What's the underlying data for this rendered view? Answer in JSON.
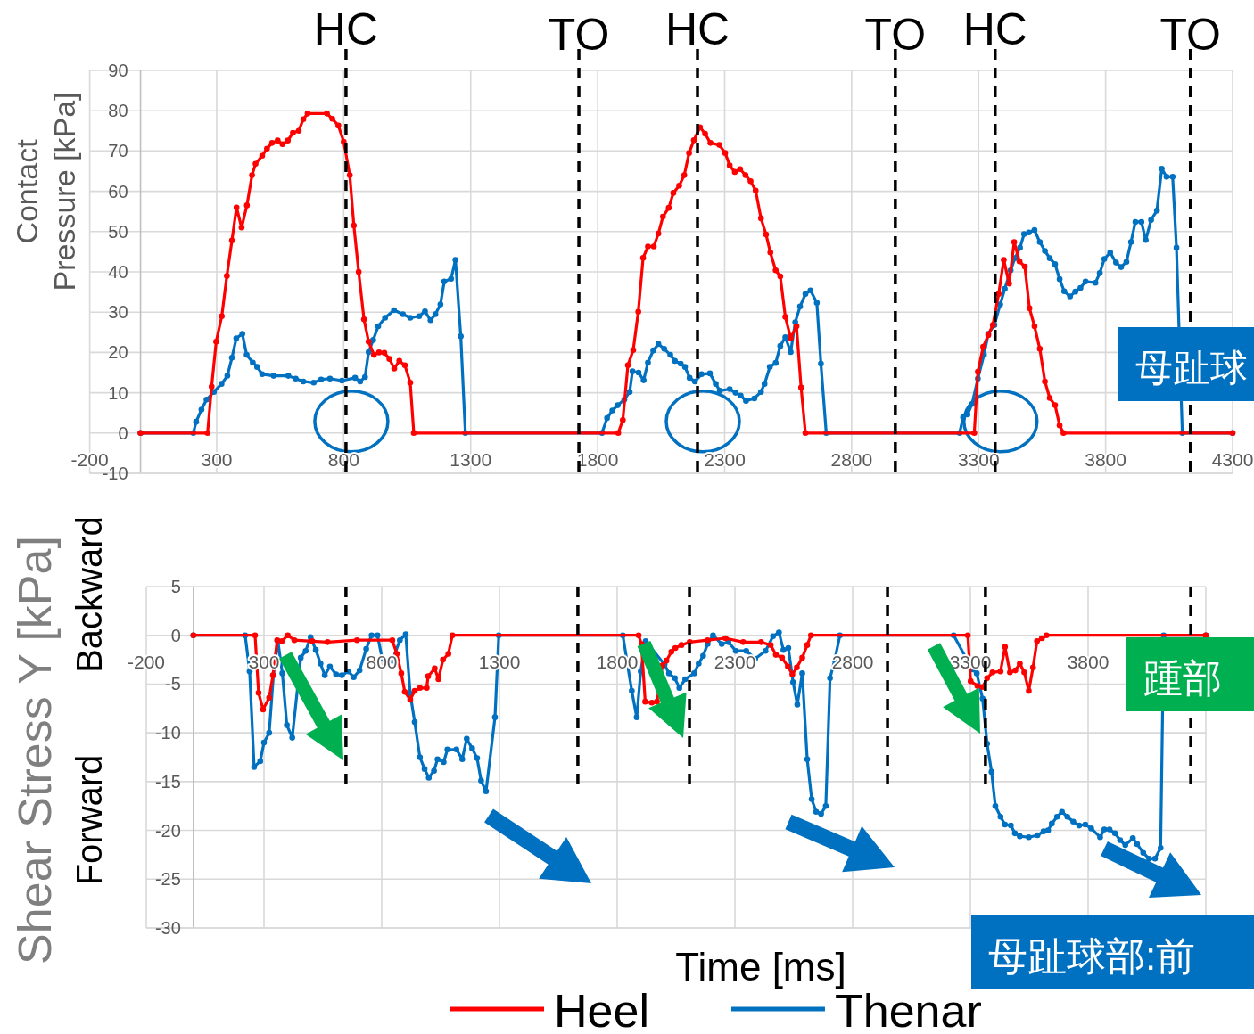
{
  "chart_data": [
    {
      "type": "line",
      "ylabel": "Contact\nPressure [kPa]",
      "xlim": [
        -200,
        4300
      ],
      "ylim": [
        -10,
        90
      ],
      "xticks": [
        -200,
        300,
        800,
        1300,
        1800,
        2300,
        2800,
        3300,
        3800,
        4300
      ],
      "yticks": [
        -10,
        0,
        10,
        20,
        30,
        40,
        50,
        60,
        70,
        80,
        90
      ],
      "grid": true,
      "marker": "circle",
      "line_style": "solid",
      "series": [
        {
          "color": "#ff0000",
          "x": [
            0,
            264,
            280,
            298,
            320,
            340,
            360,
            378,
            398,
            419,
            439,
            453,
            479,
            498,
            518,
            540,
            559,
            580,
            600,
            623,
            641,
            658,
            734,
            755,
            779,
            800,
            824,
            840,
            859,
            880,
            898,
            919,
            939,
            960,
            980,
            999,
            1019,
            1041,
            1062,
            1076,
            1881,
            1899,
            1919,
            1940,
            1960,
            1979,
            1998,
            2021,
            2039,
            2057,
            2080,
            2098,
            2121,
            2141,
            2160,
            2179,
            2203,
            2223,
            2244,
            2279,
            2302,
            2320,
            2340,
            2361,
            2382,
            2402,
            2422,
            2443,
            2463,
            2480,
            2501,
            2519,
            2539,
            2560,
            2583,
            2601,
            2618,
            3283,
            3297,
            3318,
            3338,
            3356,
            3379,
            3399,
            3420,
            3440,
            3461,
            3482,
            3500,
            3520,
            3541,
            3561,
            3580,
            3601,
            3619,
            3634,
            4300
          ],
          "values": [
            0,
            0,
            11.5,
            22.7,
            29,
            39,
            47.8,
            56,
            51,
            56.5,
            64,
            66.8,
            68.8,
            70.6,
            72,
            72.6,
            71.7,
            72.6,
            74.5,
            75,
            77.9,
            79.3,
            79.3,
            78,
            76.3,
            72.3,
            64,
            51.5,
            40,
            28.2,
            22.7,
            19.4,
            20,
            19.9,
            18.4,
            16,
            17.9,
            16.8,
            12.5,
            0,
            0,
            3.2,
            16.8,
            20.6,
            30.1,
            43.5,
            46.3,
            46.3,
            49.5,
            53.7,
            55.9,
            59.6,
            61.4,
            64,
            69.5,
            72.7,
            75.9,
            74.3,
            72,
            71.5,
            69.5,
            66.4,
            64.8,
            65.5,
            64,
            62.5,
            60.2,
            53.3,
            49.3,
            44.8,
            40.4,
            38.9,
            28.8,
            23.6,
            26.5,
            11.3,
            0,
            0,
            15.2,
            21.4,
            24.3,
            26.8,
            34.5,
            43,
            37.1,
            47.4,
            42.6,
            41.3,
            31,
            26.5,
            20.9,
            12.8,
            8.7,
            6.9,
            1.9,
            0,
            0
          ]
        },
        {
          "color": "#0070c0",
          "x": [
            0,
            208,
            219,
            240,
            260,
            289,
            319,
            342,
            360,
            377,
            401,
            418,
            442,
            459,
            479,
            524,
            582,
            611,
            641,
            682,
            711,
            746,
            793,
            845,
            865,
            884,
            898,
            916,
            936,
            963,
            998,
            1033,
            1062,
            1097,
            1120,
            1142,
            1161,
            1181,
            1196,
            1223,
            1240,
            1261,
            1279,
            1817,
            1837,
            1858,
            1879,
            1905,
            1926,
            1937,
            1961,
            1981,
            1998,
            2019,
            2039,
            2062,
            2086,
            2104,
            2127,
            2144,
            2162,
            2183,
            2209,
            2242,
            2265,
            2281,
            2320,
            2343,
            2363,
            2384,
            2417,
            2443,
            2457,
            2478,
            2501,
            2519,
            2539,
            2560,
            2578,
            2597,
            2618,
            2638,
            2663,
            2679,
            2700,
            3225,
            3239,
            3256,
            3274,
            3297,
            3321,
            3338,
            3362,
            3385,
            3403,
            3426,
            3443,
            3463,
            3479,
            3498,
            3520,
            3541,
            3561,
            3580,
            3601,
            3619,
            3637,
            3660,
            3681,
            3701,
            3721,
            3760,
            3777,
            3795,
            3818,
            3841,
            3861,
            3882,
            3900,
            3917,
            3941,
            3958,
            3979,
            4002,
            4021,
            4040,
            4064,
            4079,
            4102,
            4300
          ],
          "values": [
            0,
            0,
            2.8,
            5.8,
            8.3,
            10.2,
            12.2,
            14.2,
            18.7,
            23.5,
            24.6,
            19.4,
            17.5,
            16.4,
            14.6,
            14.2,
            14.2,
            13.5,
            12.8,
            12.5,
            13.3,
            13.5,
            13,
            13.7,
            12.8,
            13.9,
            20.1,
            23.1,
            26.5,
            28.6,
            30.5,
            29.5,
            28.6,
            29,
            30.2,
            28,
            29.5,
            31.9,
            37.6,
            38.3,
            43,
            24,
            0,
            0,
            3.7,
            5.6,
            6.9,
            8.3,
            10.2,
            15.3,
            15,
            13.1,
            17.5,
            20.5,
            22.1,
            20.9,
            19.4,
            17.9,
            17.2,
            16.4,
            13.7,
            12.8,
            14.6,
            14.8,
            12.2,
            10.5,
            10.9,
            10,
            9.3,
            8,
            8.6,
            10.2,
            12.2,
            16.4,
            17.4,
            21.6,
            23.8,
            20.1,
            27.5,
            31.4,
            34.5,
            35.4,
            32.3,
            17.2,
            0,
            0,
            3.9,
            4.6,
            7.2,
            13.5,
            19.4,
            24.6,
            26.8,
            31.9,
            35.8,
            40.4,
            43.4,
            46,
            49.4,
            49.8,
            50.4,
            47.4,
            45.2,
            43.4,
            41.9,
            38.2,
            35.2,
            33.9,
            35.1,
            36,
            37.6,
            37.3,
            39.7,
            43.2,
            44.8,
            42.3,
            41.2,
            42.5,
            47.4,
            52.4,
            52.4,
            47.9,
            52.9,
            55.2,
            65.6,
            63.6,
            63.6,
            46,
            0,
            0
          ]
        }
      ],
      "ref_lines": [
        {
          "axis": "x",
          "value": 809,
          "label": "HC",
          "color": "#000000",
          "line_style": "dashed"
        },
        {
          "axis": "x",
          "value": 1726,
          "label": "TO",
          "color": "#000000",
          "line_style": "dashed"
        },
        {
          "axis": "x",
          "value": 2193,
          "label": "HC",
          "color": "#000000",
          "line_style": "dashed"
        },
        {
          "axis": "x",
          "value": 2972,
          "label": "TO",
          "color": "#000000",
          "line_style": "dashed"
        },
        {
          "axis": "x",
          "value": 3365,
          "label": "HC",
          "color": "#000000",
          "line_style": "dashed"
        },
        {
          "axis": "x",
          "value": 4134,
          "label": "TO",
          "color": "#000000",
          "line_style": "dashed"
        }
      ],
      "annotations": [
        "母趾球"
      ]
    },
    {
      "type": "line",
      "xlabel": "Time [ms]",
      "ylabel": "Shear Stress Y [kPa]",
      "xlim": [
        -200,
        4300
      ],
      "ylim": [
        -30,
        5
      ],
      "xticks": [
        -200,
        300,
        800,
        1300,
        1800,
        2300,
        2800,
        3300,
        3800,
        {
          "value": 4300,
          "label": null
        }
      ],
      "yticks": [
        -30,
        -25,
        -20,
        -15,
        -10,
        -5,
        0,
        5
      ],
      "grid": true,
      "marker": "circle",
      "line_style": "solid",
      "legend": "bottom",
      "series": [
        {
          "name": "Heel",
          "color": "#ff0000",
          "x": [
            0,
            262,
            277,
            296,
            322,
            338,
            356,
            376,
            401,
            429,
            505,
            570,
            695,
            845,
            864,
            883,
            898,
            921,
            940,
            962,
            991,
            997,
            1025,
            1041,
            1060,
            1083,
            1100,
            1891,
            1903,
            1919,
            1947,
            1969,
            1992,
            2009,
            2030,
            2047,
            2073,
            2108,
            2184,
            2260,
            2335,
            2411,
            2452,
            2474,
            2500,
            2525,
            2544,
            2563,
            2586,
            2607,
            2623,
            3289,
            3301,
            3330,
            3352,
            3371,
            3394,
            3428,
            3447,
            3468,
            3491,
            3510,
            3529,
            3548,
            3566,
            3583,
            3604,
            3623,
            4300
          ],
          "values": [
            0,
            0,
            -5.9,
            -7.6,
            -6.4,
            -4.1,
            -0.5,
            -0.6,
            0,
            -0.5,
            -0.6,
            -0.7,
            -0.5,
            -0.5,
            -1.9,
            -3.9,
            -5.8,
            -6.6,
            -5.7,
            -5.4,
            -5.4,
            -4.2,
            -3.4,
            -4.5,
            -2.5,
            -1.9,
            0,
            0,
            -0.9,
            -6.8,
            -6.9,
            -6.8,
            -3.1,
            -2.6,
            -1.7,
            -1.3,
            -1,
            -0.7,
            -0.5,
            -0.3,
            -0.7,
            -0.7,
            -1,
            -2,
            -2.3,
            -3.2,
            -4,
            -3.3,
            -2.3,
            -1,
            0,
            0,
            -4.7,
            -5.2,
            -5.3,
            -4.4,
            -3.8,
            -3.7,
            -1.2,
            -3.8,
            -3.6,
            -2.9,
            -3.8,
            -5.7,
            -3.3,
            -0.6,
            -0.3,
            0,
            0
          ]
        },
        {
          "name": "Thenar",
          "color": "#0070c0",
          "x": [
            0,
            220,
            239,
            258,
            284,
            300,
            322,
            340,
            359,
            378,
            397,
            420,
            456,
            477,
            498,
            520,
            540,
            558,
            580,
            606,
            631,
            659,
            681,
            706,
            734,
            757,
            782,
            801,
            820,
            845,
            877,
            902,
            921,
            940,
            962,
            982,
            1000,
            1022,
            1037,
            1063,
            1079,
            1117,
            1142,
            1161,
            1184,
            1205,
            1222,
            1243,
            1281,
            1297,
            1824,
            1862,
            1883,
            1900,
            1921,
            2001,
            2020,
            2045,
            2064,
            2089,
            2127,
            2146,
            2165,
            2184,
            2207,
            2244,
            2272,
            2304,
            2348,
            2386,
            2430,
            2462,
            2487,
            2506,
            2527,
            2547,
            2565,
            2586,
            2607,
            2626,
            2645,
            2666,
            2686,
            2704,
            2724,
            2746,
            3229,
            3308,
            3327,
            3352,
            3371,
            3390,
            3406,
            3428,
            3447,
            3472,
            3489,
            3510,
            3548,
            3585,
            3611,
            3630,
            3646,
            3668,
            3689,
            3712,
            3737,
            3762,
            3788,
            3813,
            3851,
            3869,
            3891,
            3914,
            3936,
            3958,
            3990,
            4008,
            4034,
            4059,
            4084,
            4108,
            4121,
            4300
          ],
          "values": [
            0,
            0,
            -3.7,
            -13.5,
            -12.9,
            -11,
            -10,
            -4.1,
            -0.6,
            -3.9,
            -9.2,
            -10.5,
            -2.3,
            -1.6,
            -0.2,
            -1.5,
            -2.9,
            -4.1,
            -3.2,
            -4,
            -4.1,
            -3.7,
            -4.3,
            -3.6,
            -1.4,
            0,
            0,
            -2.3,
            -3,
            -2.6,
            -0.5,
            0.1,
            -6,
            -8.9,
            -12.5,
            -13.7,
            -14.6,
            -13.9,
            -12.7,
            -13,
            -11.7,
            -11.7,
            -12.7,
            -10.6,
            -11.6,
            -12.6,
            -14.9,
            -16,
            -8.4,
            0,
            0,
            -5.7,
            -8.4,
            -3.7,
            -0.6,
            -3,
            -3.9,
            -4.4,
            -5.4,
            -4.5,
            -3.9,
            -2.9,
            -2.1,
            -0.9,
            0,
            -0.9,
            -0.7,
            -1.6,
            -1.6,
            -2.4,
            -1.6,
            -0.1,
            0.3,
            -1.5,
            -1.3,
            -4.8,
            -7.1,
            -3.9,
            -12.7,
            -16.8,
            -18.1,
            -18.3,
            -17.5,
            -4.4,
            -2.5,
            0,
            0,
            -3.5,
            -3.9,
            -6.5,
            -11.1,
            -14,
            -17.5,
            -18.6,
            -19.4,
            -19.5,
            -20.3,
            -20.6,
            -20.7,
            -20.5,
            -20.1,
            -20,
            -19.3,
            -18.6,
            -18.1,
            -18.6,
            -19.1,
            -19.5,
            -19.4,
            -19.8,
            -20.7,
            -19.9,
            -19.9,
            -20.3,
            -21,
            -21.5,
            -20.8,
            -21.4,
            -22.3,
            -22.9,
            -22.9,
            -21.8,
            0,
            0
          ]
        }
      ],
      "ref_lines": [
        {
          "axis": "x",
          "value": 648,
          "color": "#000000",
          "line_style": "dashed"
        },
        {
          "axis": "x",
          "value": 1633,
          "color": "#000000",
          "line_style": "dashed"
        },
        {
          "axis": "x",
          "value": 2107,
          "color": "#000000",
          "line_style": "dashed"
        },
        {
          "axis": "x",
          "value": 2948,
          "color": "#000000",
          "line_style": "dashed"
        },
        {
          "axis": "x",
          "value": 3364,
          "color": "#000000",
          "line_style": "dashed"
        },
        {
          "axis": "x",
          "value": 4236,
          "color": "#000000",
          "line_style": "dashed"
        }
      ],
      "annotations": [
        "Backward",
        "Forward",
        "踵部",
        "母趾球部:前"
      ]
    }
  ]
}
